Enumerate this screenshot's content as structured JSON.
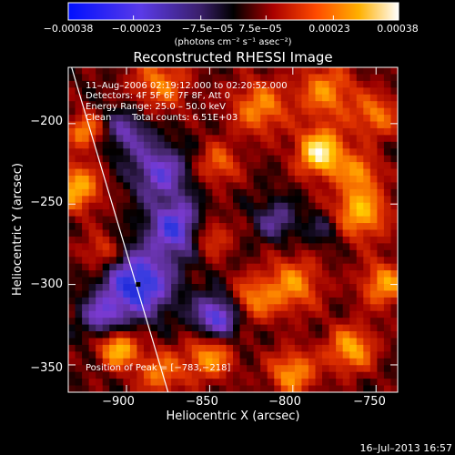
{
  "chart_data": {
    "type": "heatmap",
    "title": "Reconstructed RHESSI Image",
    "xlabel": "Heliocentric X (arcsec)",
    "ylabel": "Heliocentric Y (arcsec)",
    "xlim": [
      -935,
      -737
    ],
    "ylim": [
      -367,
      -165
    ],
    "x_ticks": [
      -900,
      -850,
      -800,
      -750
    ],
    "x_tick_labels": [
      "−900",
      "−850",
      "−800",
      "−750"
    ],
    "y_ticks": [
      -200,
      -250,
      -300,
      -350
    ],
    "y_tick_labels": [
      "−200",
      "−250",
      "−300",
      "−350"
    ],
    "colorbar": {
      "range": [
        -0.00038,
        0.00038
      ],
      "tick_values": [
        -0.00038,
        -0.00023,
        -7.5e-05,
        7.5e-05,
        0.00023,
        0.00038
      ],
      "tick_labels": [
        "−0.00038",
        "−0.00023",
        "−7.5e−05",
        "7.5e−05",
        "0.00023",
        "0.00038"
      ],
      "units": "(photons cm⁻² s⁻¹ asec⁻²)"
    },
    "annotations": {
      "time_range": "11–Aug–2006 02:19:12.000 to 02:20:52.000",
      "detectors": "Detectors: 4F 5F 6F 7F 8F, Att 0",
      "energy_range": "Energy Range: 25.0 – 50.0 keV",
      "clean_label": "Clean",
      "total_counts": "Total counts: 6.51E+03",
      "peak_position": "Position of Peak = [−783,−218]"
    },
    "peak": {
      "x": -783,
      "y": -218
    },
    "min_marker": {
      "x": -893,
      "y": -300
    },
    "limb_line": [
      [
        -933,
        -165
      ],
      [
        -875,
        -367
      ]
    ],
    "colormap": [
      "#0b1cd6",
      "#3a3ce0",
      "#7a3ad0",
      "#4c2a78",
      "#000000",
      "#9a0000",
      "#e03200",
      "#ff8a00",
      "#ffd200",
      "#ffffff"
    ]
  },
  "footer": {
    "timestamp": "16–Jul–2013 16:57"
  }
}
